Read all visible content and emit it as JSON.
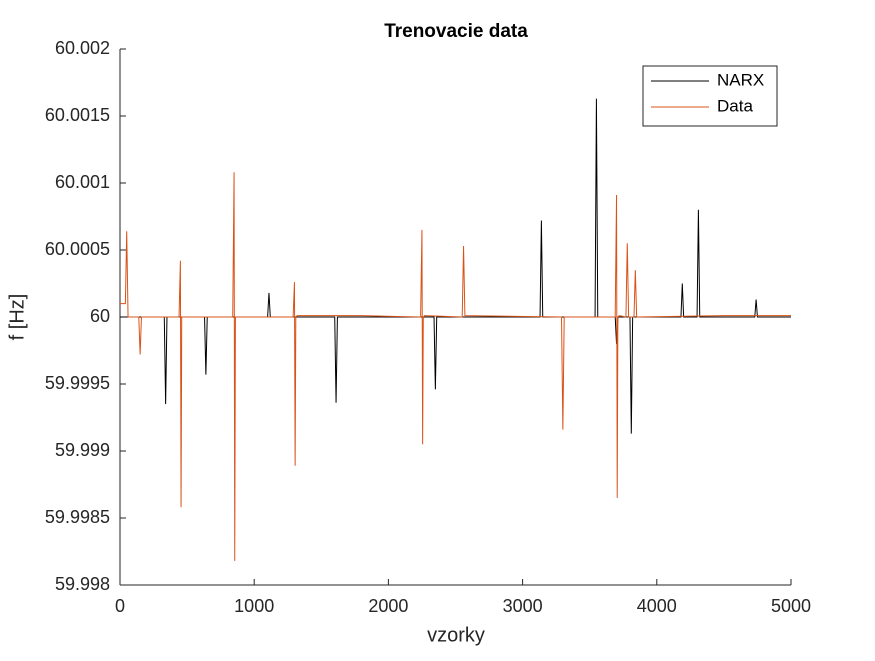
{
  "chart_data": {
    "type": "line",
    "title": "Trenovacie data",
    "xlabel": "vzorky",
    "ylabel": "f [Hz]",
    "xlim": [
      0,
      5000
    ],
    "xticks": [
      0,
      1000,
      2000,
      3000,
      4000,
      5000
    ],
    "ylim": [
      59.998,
      60.002
    ],
    "yticks": [
      59.998,
      59.9985,
      59.999,
      59.9995,
      60,
      60.0005,
      60.001,
      60.0015,
      60.002
    ],
    "legend_position": "upper right",
    "series": [
      {
        "name": "NARX",
        "color": "#000000",
        "x": [
          0,
          330,
          340,
          350,
          630,
          640,
          650,
          1100,
          1110,
          1120,
          1600,
          1610,
          1620,
          2340,
          2350,
          2360,
          3130,
          3140,
          3150,
          3540,
          3550,
          3560,
          3690,
          3700,
          3710,
          3800,
          3810,
          3820,
          4180,
          4190,
          4200,
          4300,
          4310,
          4320,
          4730,
          4740,
          4750,
          5000
        ],
        "values": [
          60,
          60,
          59.99935,
          60,
          60,
          59.99957,
          60,
          60,
          60.00018,
          60,
          60,
          59.99936,
          60,
          60,
          59.99946,
          60,
          60,
          60.00072,
          60,
          60,
          60.00163,
          60,
          60,
          59.9998,
          60,
          60,
          59.99913,
          60,
          60,
          60.00025,
          60,
          60,
          60.0008,
          60,
          60,
          60.00013,
          60,
          60
        ]
      },
      {
        "name": "Data",
        "color": "#d95319",
        "x": [
          0,
          40,
          50,
          60,
          140,
          150,
          160,
          440,
          450,
          455,
          460,
          840,
          850,
          855,
          860,
          865,
          1290,
          1300,
          1305,
          1310,
          1320,
          1800,
          2240,
          2250,
          2255,
          2260,
          2270,
          2550,
          2560,
          2570,
          3290,
          3300,
          3310,
          3690,
          3700,
          3705,
          3710,
          3720,
          3770,
          3780,
          3790,
          3830,
          3840,
          3850,
          4500,
          5000
        ],
        "values": [
          60.0001,
          60.0001,
          60.00064,
          60,
          60,
          59.99972,
          60,
          60,
          60.00042,
          59.99858,
          60,
          60,
          60.00108,
          59.99818,
          60,
          60,
          60,
          60.00026,
          59.99889,
          60,
          60.00001,
          60.00001,
          60,
          60.00065,
          59.99905,
          60,
          60.00001,
          60,
          60.00053,
          60.00001,
          60,
          59.99916,
          60,
          60,
          60.00091,
          59.99865,
          60,
          60.00001,
          60,
          60.00055,
          60,
          60,
          60.00035,
          60,
          60.00001,
          60.00001
        ]
      }
    ]
  }
}
